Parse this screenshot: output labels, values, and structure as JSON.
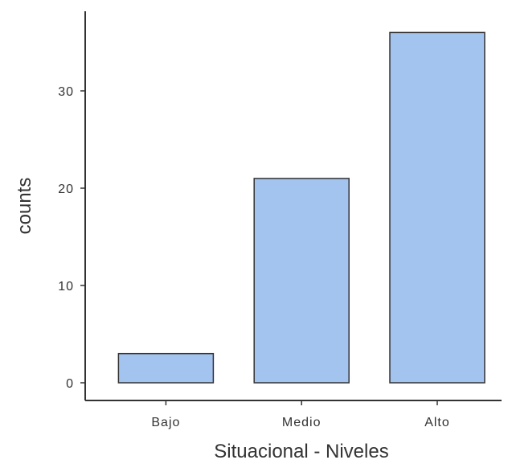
{
  "chart_data": {
    "type": "bar",
    "categories": [
      "Bajo",
      "Medio",
      "Alto"
    ],
    "values": [
      3,
      21,
      36
    ],
    "xlabel": "Situacional - Niveles",
    "ylabel": "counts",
    "ylim": [
      0,
      38
    ],
    "yticks": [
      0,
      10,
      20,
      30
    ],
    "bar_color": "#a4c4f0",
    "outline_color": "#333333",
    "grid": false,
    "legend": false
  }
}
